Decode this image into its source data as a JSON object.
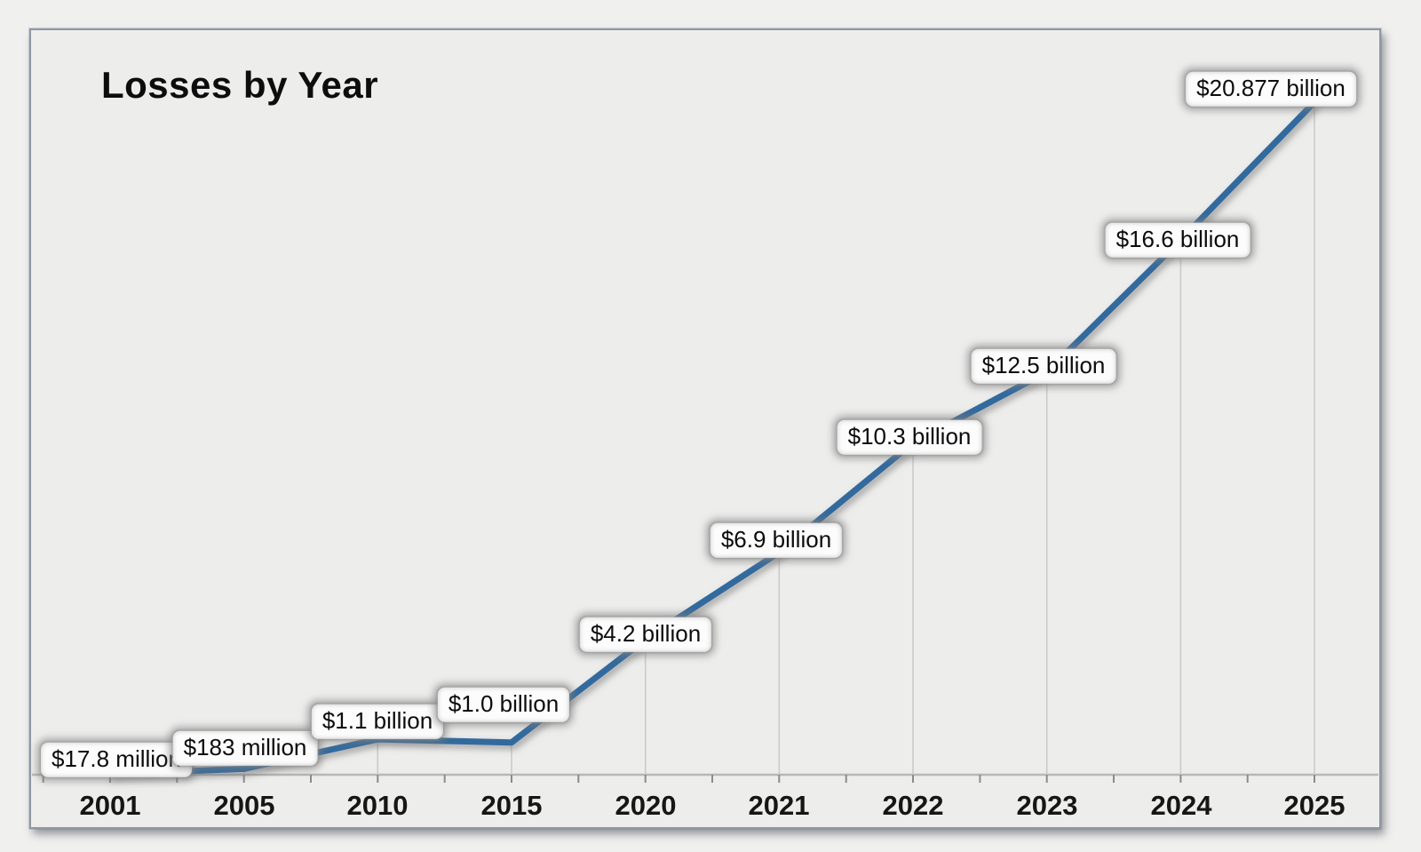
{
  "chart_data": {
    "type": "line",
    "title": "Losses by Year",
    "x_categories": [
      "2001",
      "2005",
      "2010",
      "2015",
      "2020",
      "2021",
      "2022",
      "2023",
      "2024",
      "2025"
    ],
    "series": [
      {
        "name": "Losses",
        "values_usd_billions": [
          0.0178,
          0.183,
          1.1,
          1.0,
          4.2,
          6.9,
          10.3,
          12.5,
          16.6,
          20.877
        ]
      }
    ],
    "point_labels": [
      "$17.8 million",
      "$183 million",
      "$1.1 billion",
      "$1.0 billion",
      "$4.2 billion",
      "$6.9 billion",
      "$10.3 billion",
      "$12.5 billion",
      "$16.6 billion",
      "$20.877 billion"
    ],
    "xlabel": "",
    "ylabel": "",
    "ylim": [
      0,
      20.877
    ],
    "legend": "none",
    "grid": "vertical drop lines from each point to x-axis",
    "line_color": "#336a9e",
    "axis_color": "#b7b7b7",
    "tick_color": "#8b8b8b",
    "gridline_color": "#c9c9c9",
    "callout_bg": "#fcfcfc",
    "panel_bg": "#ededec"
  }
}
